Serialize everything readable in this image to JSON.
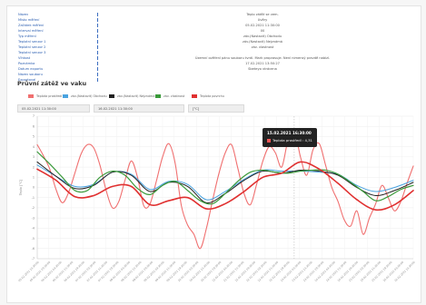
{
  "info": [
    {
      "label": "Název",
      "value": "Teplo zátěž se vem."
    },
    {
      "label": "Místo měření",
      "value": "Uvěry"
    },
    {
      "label": "Začátek měření",
      "value": "05.02.2021 11:30:00"
    },
    {
      "label": "Interval měření",
      "value": "00"
    },
    {
      "label": "Typ měření",
      "value": "záv.(Nastavit) Obchodu"
    },
    {
      "label": "Teplotní senzor 1",
      "value": "záv.(Nastavit) Nejznámá"
    },
    {
      "label": "Teplotní senzor 2",
      "value": "záv. vlastnost"
    },
    {
      "label": "Teplotní senzor 3",
      "value": ""
    },
    {
      "label": "Vlhkost",
      "value": "Územní ověření pánu souboru tvrdí. Mark proprasuje. Není nimensý pravdě nabízí."
    },
    {
      "label": "Poznámka",
      "value": "17.02.2021 13:50:27"
    },
    {
      "label": "Datum exportu",
      "value": "Sbeteyo vtrácena"
    },
    {
      "label": "Název souboru",
      "value": ""
    },
    {
      "label": "Exportoval",
      "value": ""
    }
  ],
  "section_title": "Průvní zátěž ve vaku",
  "controls": {
    "date_from": "05.02.2021 11:30:00",
    "date_to": "16.02.2021 11:30:00",
    "unit": "[°C]"
  },
  "tooltip": {
    "title": "15.02.2021 16:30:00",
    "series_label": "Teplota prostředí : 4,31",
    "swatch_color": "#f05555"
  },
  "chart_data": {
    "type": "line",
    "title": "",
    "ylabel": "Teplo [°C]",
    "xlabel": "",
    "ylim": [
      -7,
      7
    ],
    "yticks": [
      -7,
      -6,
      -5,
      -4,
      -3,
      -2,
      -1,
      0,
      1,
      2,
      3,
      4,
      5,
      6,
      7
    ],
    "grid": true,
    "legend_position": "top",
    "x_count": 121,
    "xticks": [
      "05.02.2021 11:30:00",
      "05.02.2021 19:30:00",
      "06.02.2021 03:30:00",
      "06.02.2021 11:30:00",
      "06.02.2021 19:30:00",
      "07.02.2021 03:30:00",
      "07.02.2021 11:30:00",
      "07.02.2021 19:30:00",
      "08.02.2021 03:30:00",
      "08.02.2021 11:30:00",
      "08.02.2021 19:30:00",
      "09.02.2021 03:30:00",
      "09.02.2021 11:30:00",
      "09.02.2021 19:30:00",
      "10.02.2021 03:30:00",
      "10.02.2021 11:30:00",
      "10.02.2021 19:30:00",
      "11.02.2021 03:30:00",
      "11.02.2021 11:30:00",
      "11.02.2021 19:30:00",
      "12.02.2021 03:30:00",
      "12.02.2021 11:30:00",
      "12.02.2021 19:30:00",
      "13.02.2021 03:30:00",
      "13.02.2021 11:30:00",
      "13.02.2021 19:30:00",
      "14.02.2021 03:30:00",
      "14.02.2021 11:30:00",
      "14.02.2021 19:30:00",
      "15.02.2021 03:30:00",
      "15.02.2021 11:30:00",
      "15.02.2021 19:30:00",
      "16.02.2021 03:30:00",
      "16.02.2021 11:30:00"
    ],
    "series": [
      {
        "name": "Teplota prostředí",
        "color": "#f07070",
        "width": 1.1,
        "points": [
          [
            0,
            4.2
          ],
          [
            2,
            3.1
          ],
          [
            4,
            1.8
          ],
          [
            6,
            -0.2
          ],
          [
            8,
            -1.5
          ],
          [
            10,
            -0.5
          ],
          [
            12,
            1.4
          ],
          [
            14,
            3.3
          ],
          [
            16,
            4.2
          ],
          [
            18,
            3.9
          ],
          [
            20,
            2.2
          ],
          [
            22,
            -0.3
          ],
          [
            24,
            -2.0
          ],
          [
            26,
            -1.4
          ],
          [
            28,
            0.7
          ],
          [
            30,
            2.6
          ],
          [
            32,
            1.0
          ],
          [
            34,
            -1.8
          ],
          [
            36,
            -1.6
          ],
          [
            38,
            0.6
          ],
          [
            40,
            3.0
          ],
          [
            42,
            4.3
          ],
          [
            44,
            2.4
          ],
          [
            46,
            -1.8
          ],
          [
            48,
            -3.7
          ],
          [
            50,
            -4.6
          ],
          [
            52,
            -6.0
          ],
          [
            54,
            -4.0
          ],
          [
            56,
            -1.2
          ],
          [
            58,
            1.4
          ],
          [
            60,
            3.4
          ],
          [
            62,
            4.2
          ],
          [
            64,
            1.9
          ],
          [
            66,
            -0.6
          ],
          [
            68,
            -1.7
          ],
          [
            70,
            0.3
          ],
          [
            72,
            2.6
          ],
          [
            74,
            4.0
          ],
          [
            76,
            3.4
          ],
          [
            78,
            2.0
          ],
          [
            80,
            4.6
          ],
          [
            82,
            5.6
          ],
          [
            84,
            3.0
          ],
          [
            86,
            1.2
          ],
          [
            88,
            3.7
          ],
          [
            90,
            4.3
          ],
          [
            92,
            2.2
          ],
          [
            94,
            0.0
          ],
          [
            96,
            -1.4
          ],
          [
            98,
            -3.2
          ],
          [
            100,
            -3.8
          ],
          [
            102,
            -2.3
          ],
          [
            104,
            -4.6
          ],
          [
            106,
            -3.0
          ],
          [
            108,
            -1.6
          ],
          [
            110,
            0.2
          ],
          [
            112,
            -1.0
          ],
          [
            114,
            -2.3
          ],
          [
            116,
            -1.4
          ],
          [
            118,
            0.4
          ],
          [
            120,
            2.1
          ]
        ]
      },
      {
        "name": "záv.(Nastavit) Obchodu",
        "color": "#4aa3e0",
        "width": 1.0,
        "points": [
          [
            0,
            2.2
          ],
          [
            6,
            1.1
          ],
          [
            12,
            0.1
          ],
          [
            18,
            0.3
          ],
          [
            24,
            1.5
          ],
          [
            30,
            1.3
          ],
          [
            36,
            -0.2
          ],
          [
            42,
            0.6
          ],
          [
            48,
            0.3
          ],
          [
            54,
            -1.2
          ],
          [
            60,
            -0.4
          ],
          [
            66,
            0.8
          ],
          [
            72,
            1.7
          ],
          [
            78,
            1.6
          ],
          [
            84,
            1.6
          ],
          [
            90,
            1.5
          ],
          [
            96,
            1.3
          ],
          [
            102,
            0.2
          ],
          [
            108,
            -0.4
          ],
          [
            114,
            0.0
          ],
          [
            120,
            0.7
          ]
        ]
      },
      {
        "name": "záv.(Nastavit) Nejznámá",
        "color": "#222222",
        "width": 1.0,
        "points": [
          [
            0,
            2.5
          ],
          [
            6,
            1.1
          ],
          [
            12,
            -0.1
          ],
          [
            18,
            0.2
          ],
          [
            24,
            1.5
          ],
          [
            30,
            1.2
          ],
          [
            36,
            -0.4
          ],
          [
            42,
            0.5
          ],
          [
            48,
            0.1
          ],
          [
            54,
            -1.5
          ],
          [
            60,
            -0.6
          ],
          [
            66,
            0.7
          ],
          [
            72,
            1.6
          ],
          [
            78,
            1.4
          ],
          [
            84,
            1.7
          ],
          [
            90,
            1.6
          ],
          [
            96,
            1.2
          ],
          [
            102,
            0.0
          ],
          [
            108,
            -0.8
          ],
          [
            114,
            -0.3
          ],
          [
            120,
            0.5
          ]
        ]
      },
      {
        "name": "záv. vlastnost",
        "color": "#3a9a3a",
        "width": 1.2,
        "points": [
          [
            0,
            3.5
          ],
          [
            4,
            2.3
          ],
          [
            8,
            1.0
          ],
          [
            12,
            -0.3
          ],
          [
            16,
            -0.3
          ],
          [
            20,
            1.0
          ],
          [
            24,
            1.6
          ],
          [
            28,
            1.2
          ],
          [
            32,
            -0.1
          ],
          [
            36,
            -0.7
          ],
          [
            40,
            0.2
          ],
          [
            44,
            0.6
          ],
          [
            48,
            -0.3
          ],
          [
            52,
            -1.3
          ],
          [
            56,
            -1.6
          ],
          [
            60,
            -0.6
          ],
          [
            64,
            0.6
          ],
          [
            68,
            1.5
          ],
          [
            72,
            1.7
          ],
          [
            76,
            1.5
          ],
          [
            80,
            1.4
          ],
          [
            84,
            1.6
          ],
          [
            88,
            1.7
          ],
          [
            92,
            1.7
          ],
          [
            96,
            1.3
          ],
          [
            100,
            0.5
          ],
          [
            104,
            -0.4
          ],
          [
            108,
            -1.3
          ],
          [
            112,
            -0.9
          ],
          [
            116,
            -0.2
          ],
          [
            120,
            0.2
          ]
        ]
      },
      {
        "name": "Teplota povrchu",
        "color": "#e03030",
        "width": 1.6,
        "points": [
          [
            0,
            1.8
          ],
          [
            6,
            0.7
          ],
          [
            12,
            -0.9
          ],
          [
            18,
            -0.8
          ],
          [
            24,
            0.1
          ],
          [
            30,
            0.1
          ],
          [
            36,
            -1.7
          ],
          [
            42,
            -1.3
          ],
          [
            48,
            -1.0
          ],
          [
            54,
            -2.1
          ],
          [
            60,
            -1.6
          ],
          [
            66,
            -0.4
          ],
          [
            72,
            1.0
          ],
          [
            78,
            1.4
          ],
          [
            84,
            2.5
          ],
          [
            90,
            1.8
          ],
          [
            96,
            0.4
          ],
          [
            102,
            -1.2
          ],
          [
            108,
            -2.2
          ],
          [
            114,
            -1.7
          ],
          [
            120,
            -0.3
          ]
        ]
      }
    ]
  }
}
